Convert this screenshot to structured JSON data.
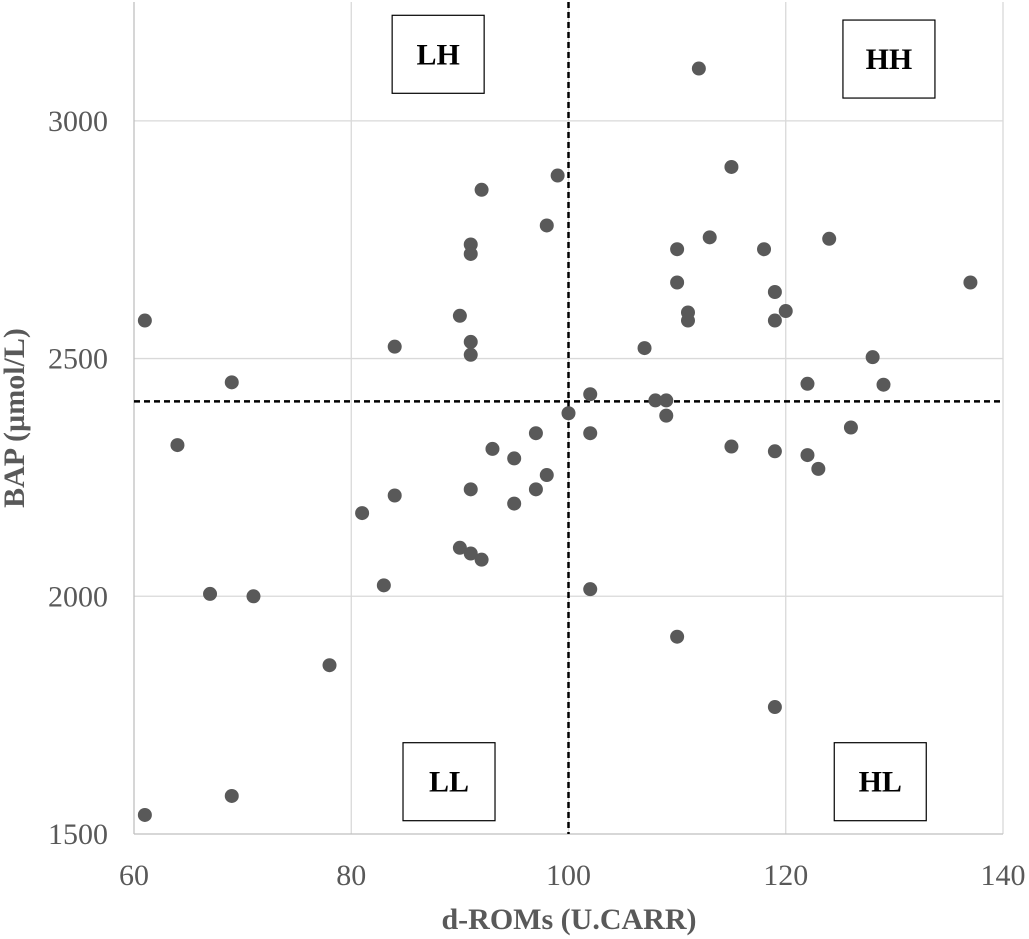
{
  "chart_data": {
    "type": "scatter",
    "title": "",
    "xlabel": "d-ROMs (U.CARR)",
    "ylabel": "BAP (µmol/L)",
    "xlim": [
      60,
      140
    ],
    "ylim": [
      1500,
      3250
    ],
    "x_ticks": [
      60,
      80,
      100,
      120,
      140
    ],
    "y_ticks": [
      1500,
      2000,
      2500,
      3000
    ],
    "x_tick_labels": [
      "60",
      "80",
      "100",
      "120",
      "140"
    ],
    "y_tick_labels": [
      "1500",
      "2000",
      "2500",
      "3000"
    ],
    "grid": true,
    "legend": "none",
    "marker_color": "#595959",
    "reference_lines": {
      "x": 100,
      "y": 2410,
      "style": "dashed",
      "color": "#000000"
    },
    "quadrant_labels": [
      {
        "text": "LH",
        "x": 88,
        "y": 3140
      },
      {
        "text": "HH",
        "x": 129.5,
        "y": 3130
      },
      {
        "text": "LL",
        "x": 89,
        "y": 1610
      },
      {
        "text": "HL",
        "x": 128.7,
        "y": 1610
      }
    ],
    "points": [
      {
        "x": 61,
        "y": 2580
      },
      {
        "x": 61,
        "y": 1540
      },
      {
        "x": 64,
        "y": 2318
      },
      {
        "x": 67,
        "y": 2005
      },
      {
        "x": 69,
        "y": 2450
      },
      {
        "x": 69,
        "y": 1580
      },
      {
        "x": 71,
        "y": 2000
      },
      {
        "x": 78,
        "y": 1855
      },
      {
        "x": 81,
        "y": 2175
      },
      {
        "x": 83,
        "y": 2023
      },
      {
        "x": 84,
        "y": 2525
      },
      {
        "x": 84,
        "y": 2212
      },
      {
        "x": 90,
        "y": 2590
      },
      {
        "x": 90,
        "y": 2102
      },
      {
        "x": 91,
        "y": 2740
      },
      {
        "x": 91,
        "y": 2720
      },
      {
        "x": 91,
        "y": 2535
      },
      {
        "x": 91,
        "y": 2508
      },
      {
        "x": 91,
        "y": 2225
      },
      {
        "x": 91,
        "y": 2090
      },
      {
        "x": 92,
        "y": 2855
      },
      {
        "x": 92,
        "y": 2077
      },
      {
        "x": 93,
        "y": 2310
      },
      {
        "x": 95,
        "y": 2290
      },
      {
        "x": 95,
        "y": 2195
      },
      {
        "x": 97,
        "y": 2343
      },
      {
        "x": 97,
        "y": 2225
      },
      {
        "x": 98,
        "y": 2780
      },
      {
        "x": 98,
        "y": 2255
      },
      {
        "x": 99,
        "y": 2885
      },
      {
        "x": 100,
        "y": 2385
      },
      {
        "x": 102,
        "y": 2425
      },
      {
        "x": 102,
        "y": 2343
      },
      {
        "x": 102,
        "y": 2015
      },
      {
        "x": 107,
        "y": 2522
      },
      {
        "x": 108,
        "y": 2412
      },
      {
        "x": 109,
        "y": 2412
      },
      {
        "x": 109,
        "y": 2380
      },
      {
        "x": 110,
        "y": 2730
      },
      {
        "x": 110,
        "y": 2660
      },
      {
        "x": 110,
        "y": 1915
      },
      {
        "x": 111,
        "y": 2597
      },
      {
        "x": 111,
        "y": 2580
      },
      {
        "x": 112,
        "y": 3110
      },
      {
        "x": 113,
        "y": 2755
      },
      {
        "x": 115,
        "y": 2903
      },
      {
        "x": 115,
        "y": 2315
      },
      {
        "x": 118,
        "y": 2730
      },
      {
        "x": 119,
        "y": 2640
      },
      {
        "x": 119,
        "y": 2580
      },
      {
        "x": 119,
        "y": 2305
      },
      {
        "x": 119,
        "y": 1767
      },
      {
        "x": 120,
        "y": 2600
      },
      {
        "x": 122,
        "y": 2447
      },
      {
        "x": 122,
        "y": 2297
      },
      {
        "x": 123,
        "y": 2268
      },
      {
        "x": 124,
        "y": 2752
      },
      {
        "x": 126,
        "y": 2355
      },
      {
        "x": 128,
        "y": 2503
      },
      {
        "x": 129,
        "y": 2445
      },
      {
        "x": 137,
        "y": 2660
      }
    ]
  }
}
